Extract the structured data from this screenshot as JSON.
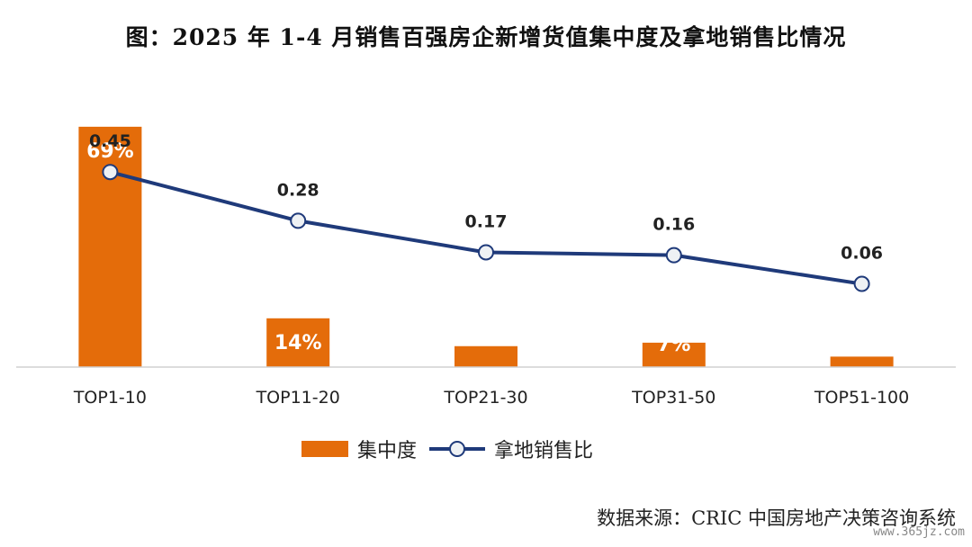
{
  "title": "图：2025 年 1-4 月销售百强房企新增货值集中度及拿地销售比情况",
  "source": "数据来源：CRIC 中国房地产决策咨询系统",
  "watermark": "www.365jz.com",
  "colors": {
    "bar": "#E46C0A",
    "line": "#1F3A7A",
    "marker_fill": "#EEF1F4",
    "bar_label": "#ffffff",
    "line_label": "#222222"
  },
  "chart_data": {
    "type": "bar",
    "categories": [
      "TOP1-10",
      "TOP11-20",
      "TOP21-30",
      "TOP31-50",
      "TOP51-100"
    ],
    "series": [
      {
        "name": "集中度",
        "type": "bar",
        "values": [
          69,
          14,
          6,
          7,
          3
        ],
        "labels": [
          "69%",
          "14%",
          "",
          "7%",
          ""
        ]
      },
      {
        "name": "拿地销售比",
        "type": "line",
        "values": [
          0.45,
          0.28,
          0.17,
          0.16,
          0.06
        ],
        "labels": [
          "0.45",
          "0.28",
          "0.17",
          "0.16",
          "0.06"
        ]
      }
    ],
    "bar_ylim": [
      0,
      70
    ],
    "line_ylim": [
      -0.23,
      0.62
    ],
    "legend_position": "bottom",
    "grid": false
  }
}
